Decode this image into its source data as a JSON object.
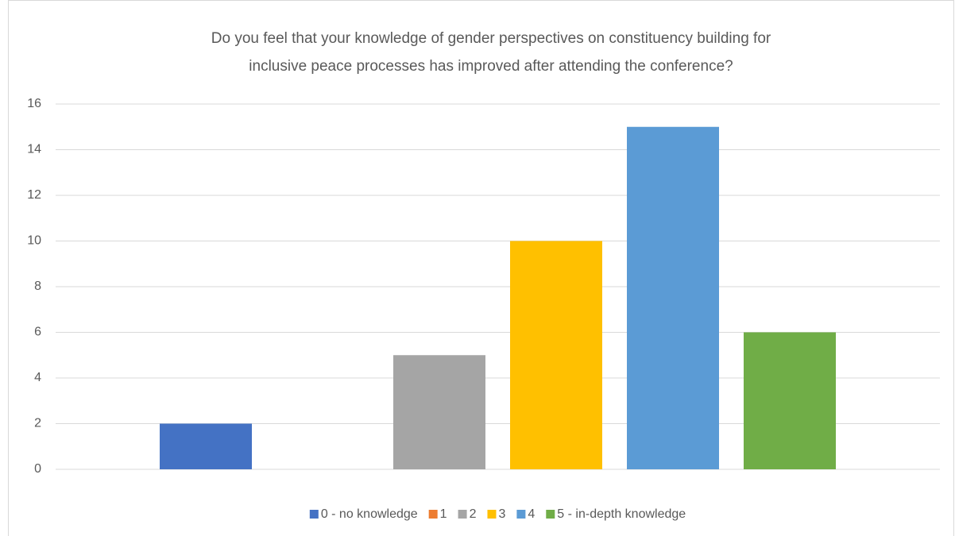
{
  "chart_data": {
    "type": "bar",
    "title": [
      "Do you feel that your knowledge of gender perspectives on constituency building for",
      "inclusive peace processes has improved after attending the conference?"
    ],
    "categories": [
      null
    ],
    "series": [
      {
        "name": "0 - no knowledge",
        "color": "#4472c4",
        "values": [
          2
        ]
      },
      {
        "name": "1",
        "color": "#ed7d31",
        "values": [
          0
        ]
      },
      {
        "name": "2",
        "color": "#a5a5a5",
        "values": [
          5
        ]
      },
      {
        "name": "3",
        "color": "#ffc000",
        "values": [
          10
        ]
      },
      {
        "name": "4",
        "color": "#5b9bd5",
        "values": [
          15
        ]
      },
      {
        "name": "5 - in-depth knowledge",
        "color": "#70ad47",
        "values": [
          6
        ]
      }
    ],
    "ylim": [
      0,
      16
    ],
    "yticks": [
      0,
      2,
      4,
      6,
      8,
      10,
      12,
      14,
      16
    ],
    "grid": true,
    "legend": "bottom"
  }
}
